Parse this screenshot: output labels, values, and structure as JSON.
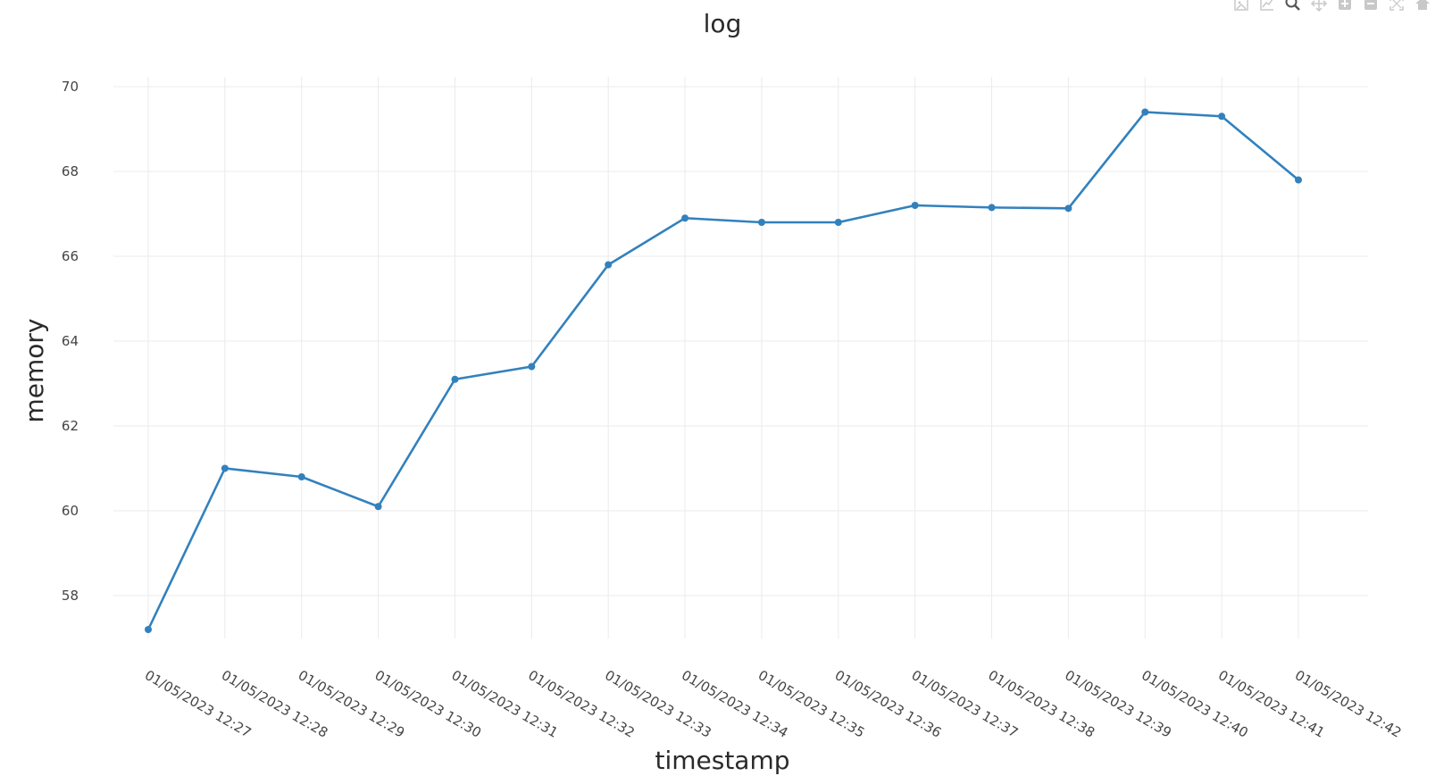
{
  "chart_data": {
    "type": "line",
    "title": "log",
    "xlabel": "timestamp",
    "ylabel": "memory",
    "x": [
      "01/05/2023 12:27",
      "01/05/2023 12:28",
      "01/05/2023 12:29",
      "01/05/2023 12:30",
      "01/05/2023 12:31",
      "01/05/2023 12:32",
      "01/05/2023 12:33",
      "01/05/2023 12:34",
      "01/05/2023 12:35",
      "01/05/2023 12:36",
      "01/05/2023 12:37",
      "01/05/2023 12:38",
      "01/05/2023 12:39",
      "01/05/2023 12:40",
      "01/05/2023 12:41",
      "01/05/2023 12:42"
    ],
    "series": [
      {
        "values": [
          57.2,
          61.0,
          60.8,
          60.1,
          63.1,
          63.4,
          65.8,
          66.9,
          66.8,
          66.8,
          67.2,
          67.15,
          67.13,
          69.4,
          69.3,
          67.8
        ],
        "color": "#3281bd",
        "markers": true
      }
    ],
    "ylim": [
      56.7,
      70.2
    ],
    "yticks": [
      58,
      60,
      62,
      64,
      66,
      68,
      70
    ],
    "grid": true,
    "legend": "none"
  },
  "modebar": {
    "buttons": [
      "download-icon",
      "autoscale-line-icon",
      "zoom-icon",
      "pan-icon",
      "zoom-in-icon",
      "zoom-out-icon",
      "autoscale-icon",
      "home-icon"
    ]
  }
}
